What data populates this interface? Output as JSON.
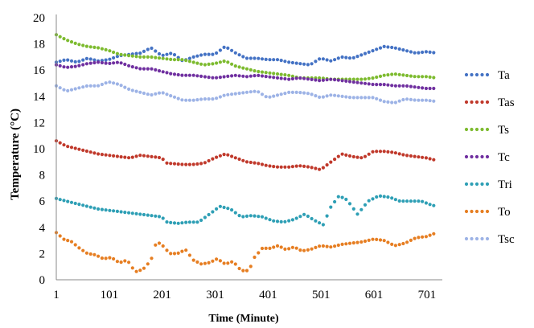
{
  "chart_data": {
    "type": "scatter",
    "title": "",
    "xlabel": "Time (Minute)",
    "ylabel": "Temperature (°C)",
    "xlim": [
      1,
      730
    ],
    "ylim": [
      0,
      20
    ],
    "x_ticks": [
      1,
      101,
      201,
      301,
      401,
      501,
      601,
      701
    ],
    "y_ticks": [
      0,
      2,
      4,
      6,
      8,
      10,
      12,
      14,
      16,
      18,
      20
    ],
    "grid": false,
    "legend_position": "right",
    "series": [
      {
        "name": "Ta",
        "color": "#4472C4",
        "keypoints": [
          [
            1,
            16.6
          ],
          [
            20,
            16.8
          ],
          [
            40,
            16.6
          ],
          [
            60,
            16.9
          ],
          [
            80,
            16.7
          ],
          [
            100,
            16.8
          ],
          [
            120,
            17.1
          ],
          [
            140,
            17.2
          ],
          [
            160,
            17.3
          ],
          [
            180,
            17.7
          ],
          [
            200,
            17.1
          ],
          [
            220,
            17.3
          ],
          [
            240,
            16.7
          ],
          [
            260,
            17.0
          ],
          [
            280,
            17.2
          ],
          [
            300,
            17.2
          ],
          [
            320,
            17.8
          ],
          [
            340,
            17.3
          ],
          [
            360,
            16.9
          ],
          [
            380,
            16.9
          ],
          [
            400,
            16.8
          ],
          [
            420,
            16.8
          ],
          [
            440,
            16.6
          ],
          [
            460,
            16.5
          ],
          [
            480,
            16.4
          ],
          [
            500,
            16.9
          ],
          [
            520,
            16.7
          ],
          [
            540,
            17.0
          ],
          [
            560,
            16.9
          ],
          [
            580,
            17.2
          ],
          [
            600,
            17.5
          ],
          [
            620,
            17.8
          ],
          [
            640,
            17.7
          ],
          [
            660,
            17.5
          ],
          [
            680,
            17.3
          ],
          [
            700,
            17.4
          ],
          [
            720,
            17.3
          ]
        ]
      },
      {
        "name": "Tas",
        "color": "#C0392B",
        "keypoints": [
          [
            1,
            10.6
          ],
          [
            20,
            10.2
          ],
          [
            40,
            10.0
          ],
          [
            60,
            9.8
          ],
          [
            80,
            9.6
          ],
          [
            100,
            9.5
          ],
          [
            120,
            9.4
          ],
          [
            140,
            9.3
          ],
          [
            160,
            9.5
          ],
          [
            180,
            9.4
          ],
          [
            200,
            9.3
          ],
          [
            210,
            8.9
          ],
          [
            240,
            8.8
          ],
          [
            260,
            8.8
          ],
          [
            280,
            8.9
          ],
          [
            300,
            9.3
          ],
          [
            320,
            9.6
          ],
          [
            340,
            9.3
          ],
          [
            360,
            9.0
          ],
          [
            380,
            8.9
          ],
          [
            400,
            8.7
          ],
          [
            420,
            8.6
          ],
          [
            440,
            8.6
          ],
          [
            460,
            8.7
          ],
          [
            480,
            8.6
          ],
          [
            500,
            8.4
          ],
          [
            520,
            9.0
          ],
          [
            540,
            9.6
          ],
          [
            560,
            9.4
          ],
          [
            580,
            9.3
          ],
          [
            600,
            9.8
          ],
          [
            620,
            9.8
          ],
          [
            640,
            9.7
          ],
          [
            660,
            9.5
          ],
          [
            680,
            9.4
          ],
          [
            700,
            9.3
          ],
          [
            720,
            9.1
          ]
        ]
      },
      {
        "name": "Ts",
        "color": "#7DBB2F",
        "keypoints": [
          [
            1,
            18.7
          ],
          [
            20,
            18.3
          ],
          [
            40,
            18.0
          ],
          [
            60,
            17.8
          ],
          [
            80,
            17.7
          ],
          [
            100,
            17.5
          ],
          [
            120,
            17.2
          ],
          [
            140,
            17.1
          ],
          [
            160,
            17.0
          ],
          [
            180,
            17.0
          ],
          [
            200,
            16.9
          ],
          [
            220,
            16.8
          ],
          [
            240,
            16.8
          ],
          [
            260,
            16.6
          ],
          [
            280,
            16.4
          ],
          [
            300,
            16.5
          ],
          [
            320,
            16.7
          ],
          [
            340,
            16.3
          ],
          [
            360,
            16.1
          ],
          [
            380,
            15.9
          ],
          [
            400,
            15.8
          ],
          [
            420,
            15.7
          ],
          [
            440,
            15.6
          ],
          [
            460,
            15.4
          ],
          [
            480,
            15.4
          ],
          [
            500,
            15.4
          ],
          [
            520,
            15.3
          ],
          [
            540,
            15.3
          ],
          [
            560,
            15.3
          ],
          [
            580,
            15.3
          ],
          [
            600,
            15.4
          ],
          [
            620,
            15.6
          ],
          [
            640,
            15.7
          ],
          [
            660,
            15.6
          ],
          [
            680,
            15.5
          ],
          [
            700,
            15.5
          ],
          [
            720,
            15.4
          ]
        ]
      },
      {
        "name": "Tc",
        "color": "#7030A0",
        "keypoints": [
          [
            1,
            16.4
          ],
          [
            20,
            16.2
          ],
          [
            40,
            16.3
          ],
          [
            60,
            16.5
          ],
          [
            80,
            16.6
          ],
          [
            100,
            16.5
          ],
          [
            120,
            16.6
          ],
          [
            140,
            16.3
          ],
          [
            160,
            16.1
          ],
          [
            180,
            16.1
          ],
          [
            200,
            15.9
          ],
          [
            220,
            15.7
          ],
          [
            240,
            15.6
          ],
          [
            260,
            15.6
          ],
          [
            280,
            15.5
          ],
          [
            300,
            15.4
          ],
          [
            320,
            15.5
          ],
          [
            340,
            15.6
          ],
          [
            360,
            15.5
          ],
          [
            380,
            15.6
          ],
          [
            400,
            15.5
          ],
          [
            420,
            15.4
          ],
          [
            440,
            15.3
          ],
          [
            460,
            15.4
          ],
          [
            480,
            15.3
          ],
          [
            500,
            15.2
          ],
          [
            520,
            15.3
          ],
          [
            540,
            15.2
          ],
          [
            560,
            15.1
          ],
          [
            580,
            15.0
          ],
          [
            600,
            14.9
          ],
          [
            620,
            14.9
          ],
          [
            640,
            14.8
          ],
          [
            660,
            14.8
          ],
          [
            680,
            14.7
          ],
          [
            700,
            14.6
          ],
          [
            720,
            14.6
          ]
        ]
      },
      {
        "name": "Tri",
        "color": "#2E9FB5",
        "keypoints": [
          [
            1,
            6.2
          ],
          [
            20,
            6.0
          ],
          [
            40,
            5.8
          ],
          [
            60,
            5.6
          ],
          [
            80,
            5.4
          ],
          [
            100,
            5.3
          ],
          [
            120,
            5.2
          ],
          [
            140,
            5.1
          ],
          [
            160,
            5.0
          ],
          [
            180,
            4.9
          ],
          [
            200,
            4.8
          ],
          [
            210,
            4.4
          ],
          [
            230,
            4.3
          ],
          [
            250,
            4.4
          ],
          [
            270,
            4.4
          ],
          [
            290,
            5.0
          ],
          [
            310,
            5.6
          ],
          [
            330,
            5.4
          ],
          [
            350,
            4.8
          ],
          [
            370,
            4.9
          ],
          [
            390,
            4.8
          ],
          [
            410,
            4.5
          ],
          [
            430,
            4.4
          ],
          [
            450,
            4.6
          ],
          [
            470,
            5.0
          ],
          [
            490,
            4.5
          ],
          [
            505,
            4.2
          ],
          [
            520,
            5.6
          ],
          [
            535,
            6.4
          ],
          [
            550,
            6.1
          ],
          [
            570,
            5.0
          ],
          [
            590,
            6.0
          ],
          [
            610,
            6.4
          ],
          [
            630,
            6.3
          ],
          [
            650,
            6.0
          ],
          [
            670,
            6.0
          ],
          [
            690,
            6.0
          ],
          [
            710,
            5.7
          ],
          [
            720,
            5.6
          ]
        ]
      },
      {
        "name": "To",
        "color": "#E67E22",
        "keypoints": [
          [
            1,
            3.6
          ],
          [
            15,
            3.1
          ],
          [
            30,
            2.9
          ],
          [
            45,
            2.4
          ],
          [
            60,
            2.0
          ],
          [
            75,
            1.9
          ],
          [
            90,
            1.6
          ],
          [
            105,
            1.7
          ],
          [
            120,
            1.3
          ],
          [
            135,
            1.5
          ],
          [
            150,
            0.6
          ],
          [
            165,
            0.8
          ],
          [
            180,
            1.5
          ],
          [
            190,
            2.9
          ],
          [
            200,
            2.7
          ],
          [
            215,
            2.0
          ],
          [
            230,
            2.0
          ],
          [
            245,
            2.3
          ],
          [
            260,
            1.5
          ],
          [
            275,
            1.2
          ],
          [
            290,
            1.3
          ],
          [
            305,
            1.6
          ],
          [
            320,
            1.2
          ],
          [
            335,
            1.4
          ],
          [
            350,
            0.7
          ],
          [
            365,
            0.7
          ],
          [
            375,
            1.7
          ],
          [
            390,
            2.4
          ],
          [
            405,
            2.4
          ],
          [
            420,
            2.6
          ],
          [
            435,
            2.3
          ],
          [
            450,
            2.5
          ],
          [
            465,
            2.2
          ],
          [
            480,
            2.3
          ],
          [
            500,
            2.6
          ],
          [
            520,
            2.5
          ],
          [
            540,
            2.7
          ],
          [
            560,
            2.8
          ],
          [
            580,
            2.9
          ],
          [
            600,
            3.1
          ],
          [
            620,
            3.0
          ],
          [
            640,
            2.6
          ],
          [
            660,
            2.8
          ],
          [
            680,
            3.2
          ],
          [
            700,
            3.3
          ],
          [
            720,
            3.6
          ]
        ]
      },
      {
        "name": "Tsc",
        "color": "#9DB3E6",
        "keypoints": [
          [
            1,
            14.8
          ],
          [
            20,
            14.4
          ],
          [
            40,
            14.6
          ],
          [
            60,
            14.8
          ],
          [
            80,
            14.8
          ],
          [
            100,
            15.1
          ],
          [
            120,
            14.9
          ],
          [
            140,
            14.5
          ],
          [
            160,
            14.3
          ],
          [
            180,
            14.1
          ],
          [
            200,
            14.3
          ],
          [
            220,
            14.0
          ],
          [
            240,
            13.7
          ],
          [
            260,
            13.7
          ],
          [
            280,
            13.8
          ],
          [
            300,
            13.8
          ],
          [
            320,
            14.1
          ],
          [
            340,
            14.2
          ],
          [
            360,
            14.3
          ],
          [
            380,
            14.4
          ],
          [
            400,
            13.9
          ],
          [
            420,
            14.1
          ],
          [
            440,
            14.3
          ],
          [
            460,
            14.3
          ],
          [
            480,
            14.2
          ],
          [
            500,
            13.9
          ],
          [
            520,
            14.1
          ],
          [
            540,
            14.0
          ],
          [
            560,
            13.9
          ],
          [
            580,
            13.9
          ],
          [
            600,
            13.9
          ],
          [
            620,
            13.6
          ],
          [
            640,
            13.5
          ],
          [
            660,
            13.8
          ],
          [
            680,
            13.7
          ],
          [
            700,
            13.7
          ],
          [
            720,
            13.6
          ]
        ]
      }
    ]
  }
}
